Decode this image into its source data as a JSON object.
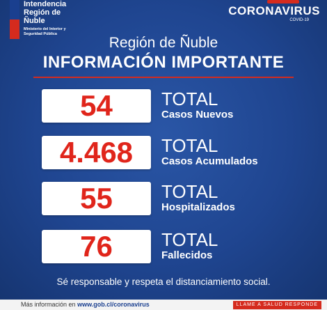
{
  "header": {
    "logo_lines": [
      "Intendencia",
      "Región de",
      "Ñuble"
    ],
    "logo_sub_lines": [
      "Ministerio del Interior y",
      "Seguridad Pública"
    ],
    "campaign_title": "CORONAVIRUS",
    "campaign_sub": "COVID-19"
  },
  "region_name": "Región de Ñuble",
  "heading": "INFORMACIÓN IMPORTANTE",
  "stats": [
    {
      "value": "54",
      "total": "TOTAL",
      "label": "Casos Nuevos"
    },
    {
      "value": "4.468",
      "total": "TOTAL",
      "label": "Casos Acumulados"
    },
    {
      "value": "55",
      "total": "TOTAL",
      "label": "Hospitalizados"
    },
    {
      "value": "76",
      "total": "TOTAL",
      "label": "Fallecidos"
    }
  ],
  "footer_message": "Sé responsable y respeta el distanciamiento social.",
  "more_info": {
    "prefix": "Más información en",
    "url": "www.gob.cl/coronavirus"
  },
  "cta_label": "LLAME A SALUD RESPONDE",
  "colors": {
    "background": "#1f4590",
    "accent_red": "#d52b1e",
    "number_red": "#e0251b",
    "box": "#ffffff"
  }
}
